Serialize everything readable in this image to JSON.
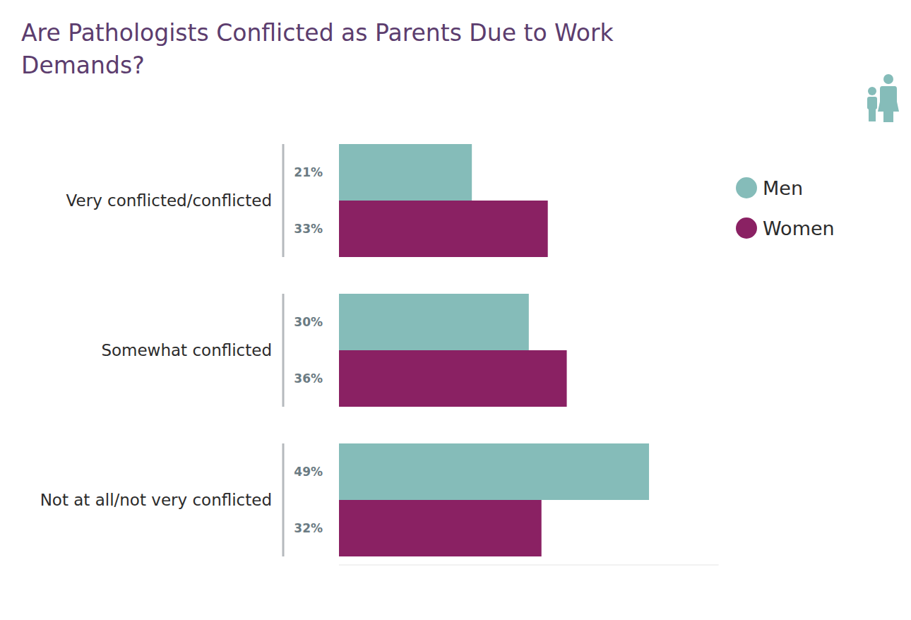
{
  "chart_data": {
    "type": "bar",
    "title": "Are Pathologists Conflicted as Parents Due to Work Demands?",
    "orientation": "horizontal",
    "categories": [
      "Very conflicted/conflicted",
      "Somewhat conflicted",
      "Not at all/not very conflicted"
    ],
    "series": [
      {
        "name": "Men",
        "color": "#85bcb9",
        "values": [
          21,
          30,
          49
        ],
        "value_labels": [
          "21%",
          "30%",
          "49%"
        ]
      },
      {
        "name": "Women",
        "color": "#8a2163",
        "values": [
          33,
          36,
          32
        ],
        "value_labels": [
          "33%",
          "36%",
          "32%"
        ]
      }
    ],
    "xlim": [
      0,
      60
    ],
    "data_labels": true,
    "tick_labels": "y",
    "grid": false,
    "legend": "top-right"
  }
}
